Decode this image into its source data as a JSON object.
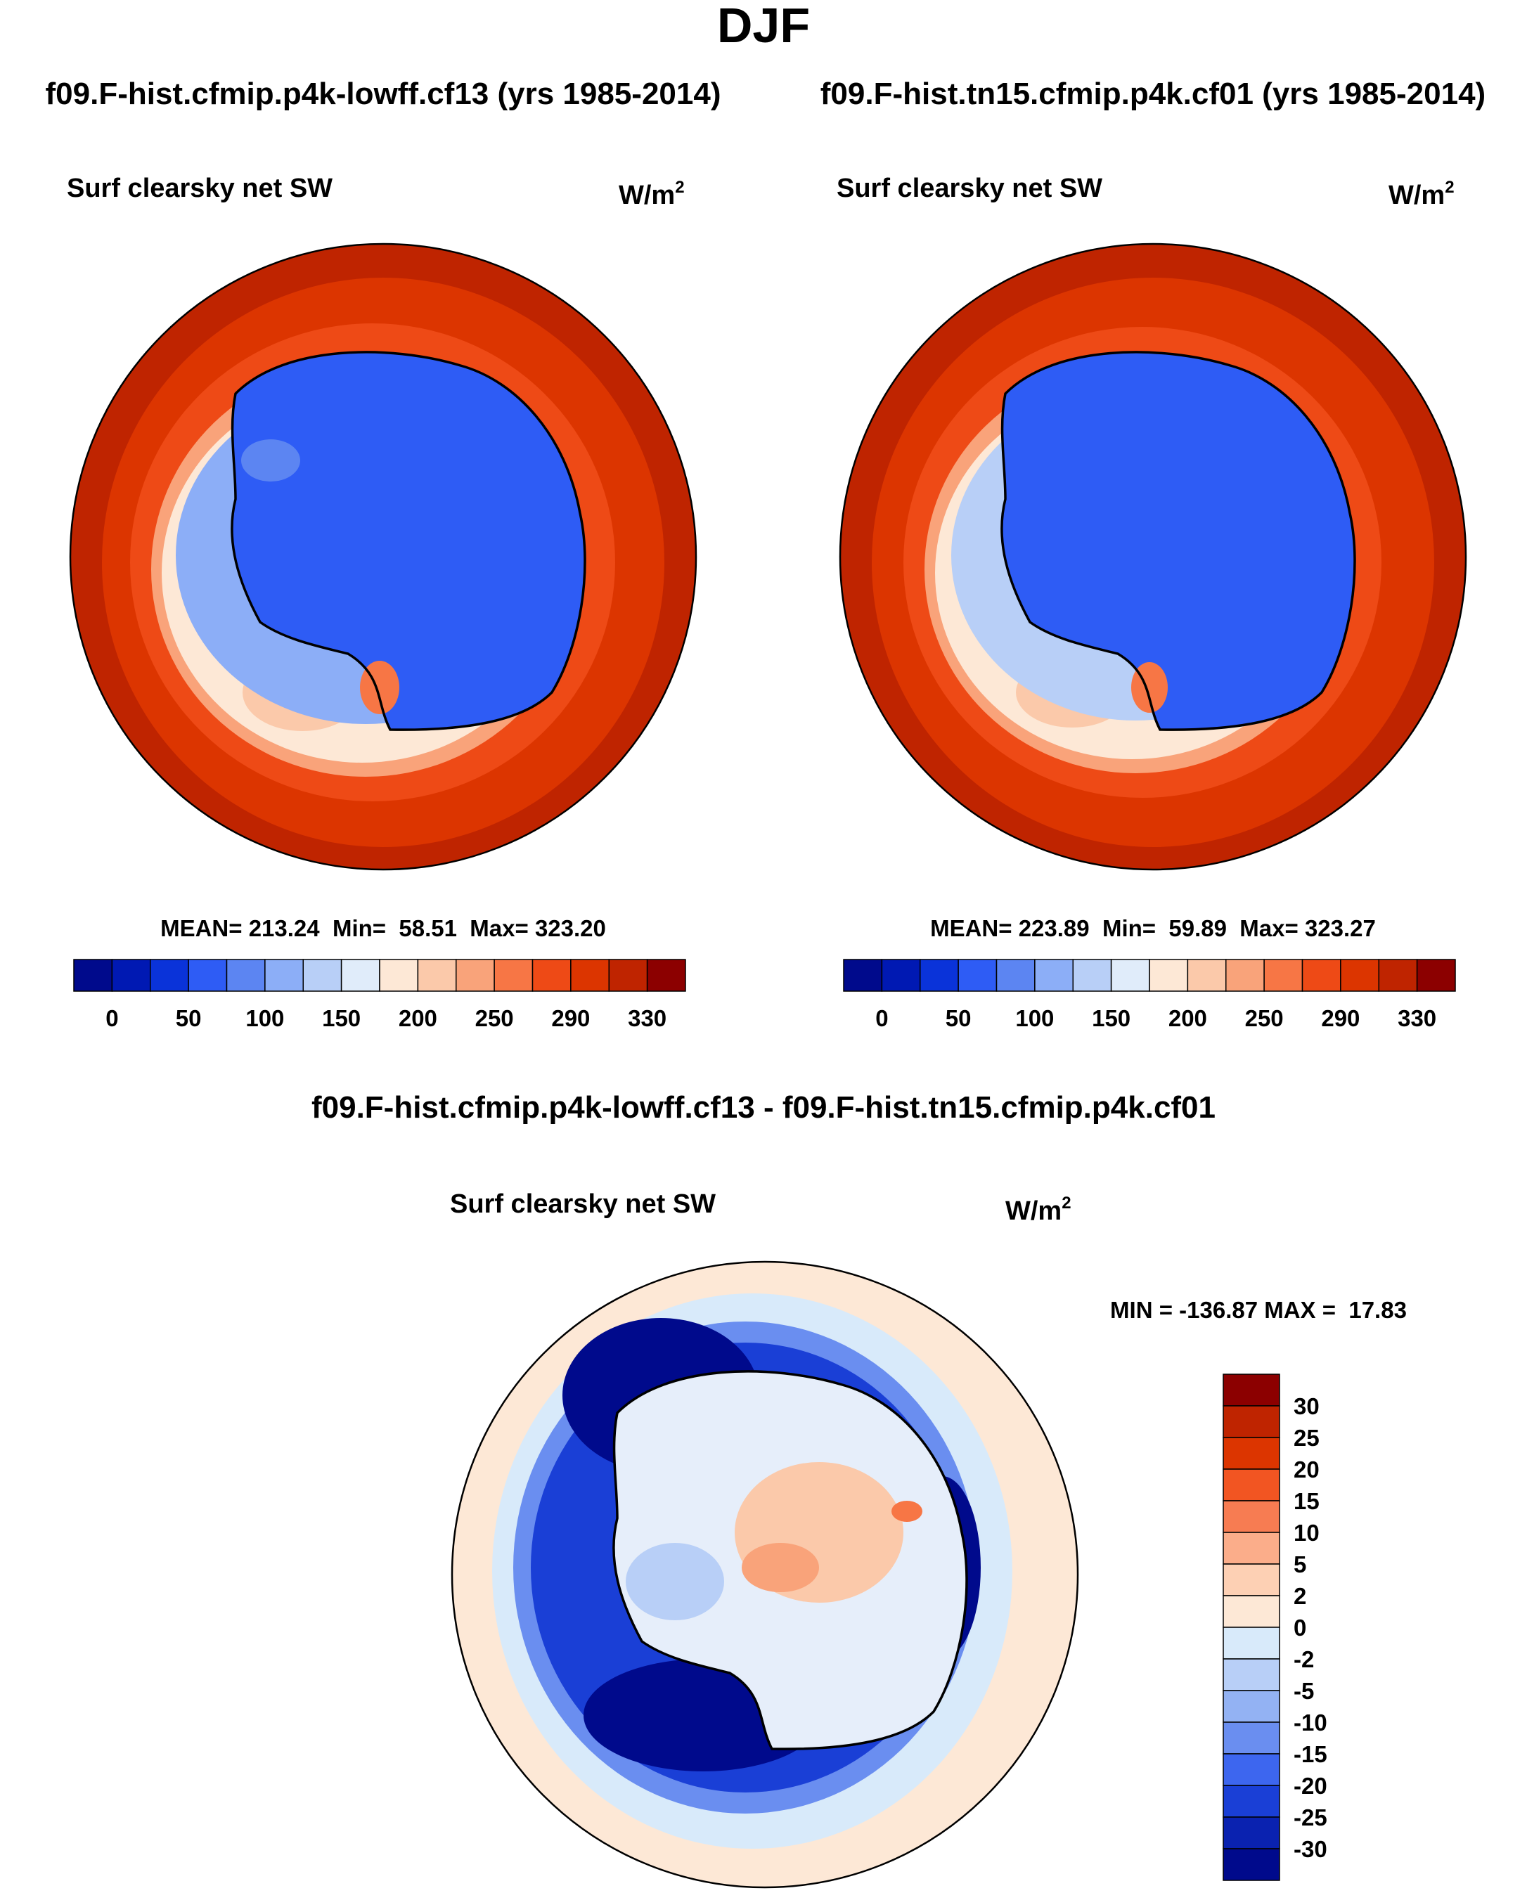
{
  "figure": {
    "season": "DJF",
    "case1_header": "f09.F-hist.cfmip.p4k-lowff.cf13 (yrs 1985-2014)",
    "case2_header": "f09.F-hist.tn15.cfmip.p4k.cf01 (yrs 1985-2014)",
    "diff_header": "f09.F-hist.cfmip.p4k-lowff.cf13 - f09.F-hist.tn15.cfmip.p4k.cf01"
  },
  "chart_data": [
    {
      "type": "heatmap",
      "name": "case1",
      "projection": "south-polar-stereographic",
      "title": "Surf clearsky net SW",
      "units": "W/m",
      "units_sup": "2",
      "stats": {
        "label": "MEAN= 213.24  Min=  58.51  Max= 323.20",
        "mean": 213.24,
        "min": 58.51,
        "max": 323.2
      },
      "colorbar": {
        "orientation": "horizontal",
        "levels": [
          "0",
          "50",
          "100",
          "150",
          "200",
          "250",
          "290",
          "330"
        ],
        "colors": [
          "#000a8c",
          "#0019b3",
          "#0a33d9",
          "#2e5cf5",
          "#5c85f2",
          "#8caef7",
          "#b8cff7",
          "#e0ecfa",
          "#fde8d6",
          "#fbc9aa",
          "#f9a37a",
          "#f77645",
          "#ee4a16",
          "#dc3500",
          "#bf2400",
          "#8c0000"
        ]
      },
      "field_colors": {
        "ice_sheet": "#2e5cf5",
        "ice_low": "#5c85f2",
        "ocean_outer": "#bf2400",
        "ocean_mid": "#dc3500",
        "ocean_inner": "#ee4a16"
      }
    },
    {
      "type": "heatmap",
      "name": "case2",
      "projection": "south-polar-stereographic",
      "title": "Surf clearsky net SW",
      "units": "W/m",
      "units_sup": "2",
      "stats": {
        "label": "MEAN= 223.89  Min=  59.89  Max= 323.27",
        "mean": 223.89,
        "min": 59.89,
        "max": 323.27
      },
      "colorbar": {
        "orientation": "horizontal",
        "levels": [
          "0",
          "50",
          "100",
          "150",
          "200",
          "250",
          "290",
          "330"
        ],
        "colors": [
          "#000a8c",
          "#0019b3",
          "#0a33d9",
          "#2e5cf5",
          "#5c85f2",
          "#8caef7",
          "#b8cff7",
          "#e0ecfa",
          "#fde8d6",
          "#fbc9aa",
          "#f9a37a",
          "#f77645",
          "#ee4a16",
          "#dc3500",
          "#bf2400",
          "#8c0000"
        ]
      },
      "field_colors": {
        "ice_sheet": "#2e5cf5",
        "ice_low": "#5c85f2",
        "ocean_outer": "#bf2400",
        "ocean_mid": "#dc3500",
        "ocean_inner": "#ee4a16"
      }
    },
    {
      "type": "heatmap",
      "name": "difference",
      "projection": "south-polar-stereographic",
      "title": "Surf clearsky net SW",
      "units": "W/m",
      "units_sup": "2",
      "stats": {
        "label": "MIN = -136.87 MAX =  17.83",
        "min": -136.87,
        "max": 17.83
      },
      "colorbar": {
        "orientation": "vertical",
        "levels": [
          "30",
          "25",
          "20",
          "15",
          "10",
          "5",
          "2",
          "0",
          "-2",
          "-5",
          "-10",
          "-15",
          "-20",
          "-25",
          "-30"
        ],
        "colors": [
          "#8c0000",
          "#bf2400",
          "#dc3500",
          "#f25522",
          "#f77c52",
          "#fbad8a",
          "#fdd0b4",
          "#fde8d6",
          "#d8eafa",
          "#b8cff7",
          "#93b2f3",
          "#6a8ef0",
          "#3d66ef",
          "#1a3fd6",
          "#0a22b0",
          "#000a8c"
        ]
      },
      "field_colors": {
        "background": "#fde8d6",
        "ring_light": "#d8eafa",
        "ring_mid": "#6a8ef0",
        "ring_dark": "#1a3fd6",
        "ring_darkest": "#000a8c",
        "interior": "#e6eefa",
        "interior_warm": "#fbc9aa"
      }
    }
  ]
}
